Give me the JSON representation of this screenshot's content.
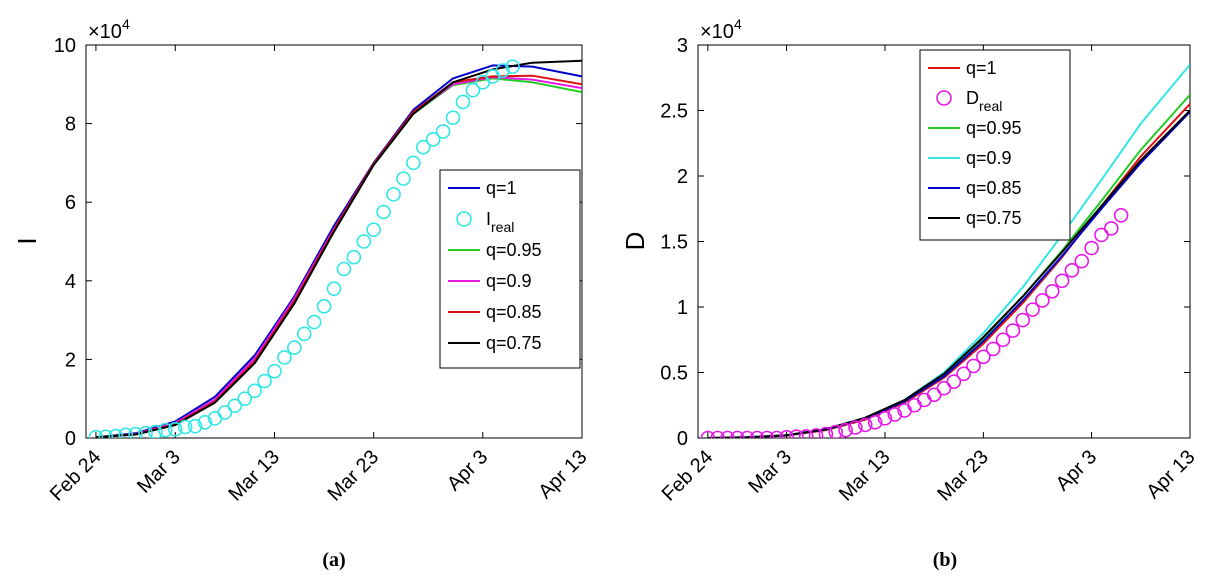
{
  "chart_data": [
    {
      "type": "line",
      "panel_label": "(a)",
      "ylabel": "I",
      "y_multiplier": "×10^4",
      "x_ticks": [
        "Feb 24",
        "Mar 3",
        "Mar 13",
        "Mar 23",
        "Apr 3",
        "Apr 13"
      ],
      "x_tick_days": [
        0,
        8,
        18,
        28,
        39,
        49
      ],
      "xlim_days": [
        -1,
        49
      ],
      "y_ticks": [
        "0",
        "2",
        "4",
        "6",
        "8",
        "10"
      ],
      "ylim": [
        0,
        10
      ],
      "grid": false,
      "legend_placement": "right",
      "legend": [
        {
          "label": "q=1",
          "color": "#0000cc",
          "kind": "line"
        },
        {
          "label": "I",
          "sub": "real",
          "color": "#33e6e6",
          "kind": "marker"
        },
        {
          "label": "q=0.95",
          "color": "#22cc22",
          "kind": "line"
        },
        {
          "label": "q=0.9",
          "color": "#e619e6",
          "kind": "line"
        },
        {
          "label": "q=0.85",
          "color": "#dd1111",
          "kind": "line"
        },
        {
          "label": "q=0.75",
          "color": "#000000",
          "kind": "line"
        }
      ],
      "x": [
        0,
        4,
        8,
        12,
        16,
        20,
        24,
        28,
        32,
        36,
        40,
        44,
        49
      ],
      "series": [
        {
          "name": "q=1",
          "color": "#0000cc",
          "values": [
            0.02,
            0.12,
            0.42,
            1.05,
            2.1,
            3.6,
            5.4,
            7.0,
            8.35,
            9.15,
            9.48,
            9.45,
            9.2
          ]
        },
        {
          "name": "q=0.95",
          "color": "#22cc22",
          "values": [
            0.02,
            0.1,
            0.38,
            0.98,
            2.02,
            3.52,
            5.3,
            6.95,
            8.25,
            8.98,
            9.15,
            9.05,
            8.8
          ]
        },
        {
          "name": "q=0.9",
          "color": "#e619e6",
          "values": [
            0.02,
            0.1,
            0.38,
            0.98,
            2.02,
            3.55,
            5.32,
            6.97,
            8.27,
            9.0,
            9.18,
            9.12,
            8.9
          ]
        },
        {
          "name": "q=0.85",
          "color": "#dd1111",
          "values": [
            0.02,
            0.09,
            0.35,
            0.93,
            1.95,
            3.48,
            5.3,
            6.98,
            8.3,
            9.05,
            9.2,
            9.22,
            9.0
          ]
        },
        {
          "name": "q=0.75",
          "color": "#000000",
          "values": [
            0.02,
            0.09,
            0.33,
            0.9,
            1.9,
            3.42,
            5.25,
            6.95,
            8.25,
            9.05,
            9.38,
            9.55,
            9.6
          ]
        }
      ],
      "observed": {
        "name": "I_real",
        "color": "#33e6e6",
        "x": [
          0,
          1,
          2,
          3,
          4,
          5,
          6,
          7,
          8,
          9,
          10,
          11,
          12,
          13,
          14,
          15,
          16,
          17,
          18,
          19,
          20,
          21,
          22,
          23,
          24,
          25,
          26,
          27,
          28,
          29,
          30,
          31,
          32,
          33,
          34,
          35,
          36,
          37,
          38,
          39,
          40,
          41,
          42
        ],
        "values": [
          0.02,
          0.03,
          0.05,
          0.08,
          0.1,
          0.12,
          0.15,
          0.2,
          0.22,
          0.28,
          0.3,
          0.4,
          0.5,
          0.65,
          0.82,
          1.0,
          1.2,
          1.45,
          1.7,
          2.05,
          2.3,
          2.65,
          2.95,
          3.35,
          3.8,
          4.3,
          4.6,
          5.0,
          5.3,
          5.75,
          6.2,
          6.6,
          7.0,
          7.4,
          7.6,
          7.8,
          8.15,
          8.55,
          8.85,
          9.05,
          9.2,
          9.35,
          9.45
        ]
      }
    },
    {
      "type": "line",
      "panel_label": "(b)",
      "ylabel": "D",
      "y_multiplier": "×10^4",
      "x_ticks": [
        "Feb 24",
        "Mar 3",
        "Mar 13",
        "Mar 23",
        "Apr 3",
        "Apr 13"
      ],
      "x_tick_days": [
        0,
        8,
        18,
        28,
        39,
        49
      ],
      "xlim_days": [
        -1,
        49
      ],
      "y_ticks": [
        "0",
        "0.5",
        "1",
        "1.5",
        "2",
        "2.5",
        "3"
      ],
      "ylim": [
        0,
        3
      ],
      "grid": false,
      "legend_placement": "top-center",
      "legend": [
        {
          "label": "q=1",
          "color": "#dd1111",
          "kind": "line"
        },
        {
          "label": "D",
          "sub": "real",
          "color": "#e619e6",
          "kind": "marker"
        },
        {
          "label": "q=0.95",
          "color": "#22cc22",
          "kind": "line"
        },
        {
          "label": "q=0.9",
          "color": "#33e6e6",
          "kind": "line"
        },
        {
          "label": "q=0.85",
          "color": "#0000cc",
          "kind": "line"
        },
        {
          "label": "q=0.75",
          "color": "#000000",
          "kind": "line"
        }
      ],
      "x": [
        0,
        4,
        8,
        12,
        16,
        20,
        24,
        28,
        32,
        36,
        40,
        44,
        49
      ],
      "series": [
        {
          "name": "q=1",
          "color": "#dd1111",
          "values": [
            0,
            0.004,
            0.018,
            0.06,
            0.14,
            0.27,
            0.46,
            0.72,
            1.03,
            1.38,
            1.77,
            2.15,
            2.55
          ]
        },
        {
          "name": "q=0.95",
          "color": "#22cc22",
          "values": [
            0,
            0.005,
            0.02,
            0.065,
            0.15,
            0.28,
            0.48,
            0.76,
            1.08,
            1.43,
            1.81,
            2.2,
            2.62
          ]
        },
        {
          "name": "q=0.9",
          "color": "#33e6e6",
          "values": [
            0,
            0.005,
            0.022,
            0.068,
            0.155,
            0.29,
            0.5,
            0.8,
            1.15,
            1.55,
            1.97,
            2.4,
            2.85
          ]
        },
        {
          "name": "q=0.85",
          "color": "#0000cc",
          "values": [
            0,
            0.005,
            0.02,
            0.065,
            0.15,
            0.28,
            0.47,
            0.74,
            1.05,
            1.39,
            1.75,
            2.1,
            2.49
          ]
        },
        {
          "name": "q=0.75",
          "color": "#000000",
          "values": [
            0,
            0.005,
            0.021,
            0.068,
            0.155,
            0.29,
            0.49,
            0.77,
            1.08,
            1.42,
            1.77,
            2.12,
            2.5
          ]
        }
      ],
      "observed": {
        "name": "D_real",
        "color": "#e619e6",
        "x": [
          0,
          1,
          2,
          3,
          4,
          5,
          6,
          7,
          8,
          9,
          10,
          11,
          12,
          13,
          14,
          15,
          16,
          17,
          18,
          19,
          20,
          21,
          22,
          23,
          24,
          25,
          26,
          27,
          28,
          29,
          30,
          31,
          32,
          33,
          34,
          35,
          36,
          37,
          38,
          39,
          40,
          41,
          42
        ],
        "values": [
          0,
          0,
          0,
          0,
          0,
          0,
          0,
          0,
          0.005,
          0.01,
          0.012,
          0.02,
          0.03,
          0.045,
          0.06,
          0.08,
          0.1,
          0.12,
          0.15,
          0.18,
          0.21,
          0.25,
          0.29,
          0.33,
          0.38,
          0.43,
          0.49,
          0.55,
          0.62,
          0.68,
          0.75,
          0.82,
          0.9,
          0.98,
          1.05,
          1.12,
          1.2,
          1.28,
          1.35,
          1.45,
          1.55,
          1.6,
          1.7
        ]
      }
    }
  ]
}
